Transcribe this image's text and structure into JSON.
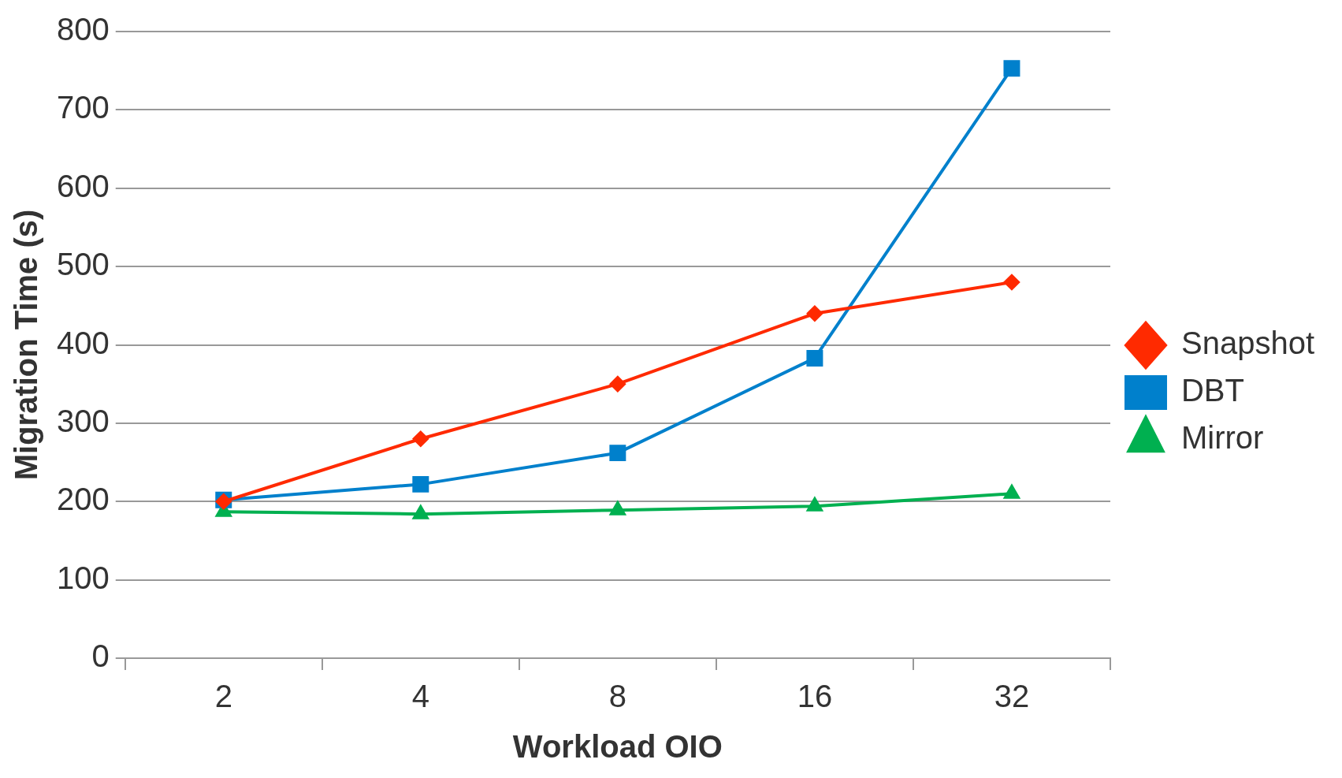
{
  "chart_data": {
    "type": "line",
    "xlabel": "Workload OIO",
    "ylabel": "Migration Time (s)",
    "categories": [
      "2",
      "4",
      "8",
      "16",
      "32"
    ],
    "series": [
      {
        "name": "Snapshot",
        "color": "#ff2a00",
        "marker": "diamond",
        "values": [
          200,
          280,
          350,
          440,
          480
        ]
      },
      {
        "name": "DBT",
        "color": "#0080cc",
        "marker": "square",
        "values": [
          202,
          222,
          262,
          383,
          753
        ]
      },
      {
        "name": "Mirror",
        "color": "#00b050",
        "marker": "triangle",
        "values": [
          187,
          184,
          189,
          194,
          210
        ]
      }
    ],
    "ylim": [
      0,
      800
    ],
    "yticks": [
      0,
      100,
      200,
      300,
      400,
      500,
      600,
      700,
      800
    ],
    "grid": "y",
    "legend": "right",
    "line_style": "solid"
  }
}
